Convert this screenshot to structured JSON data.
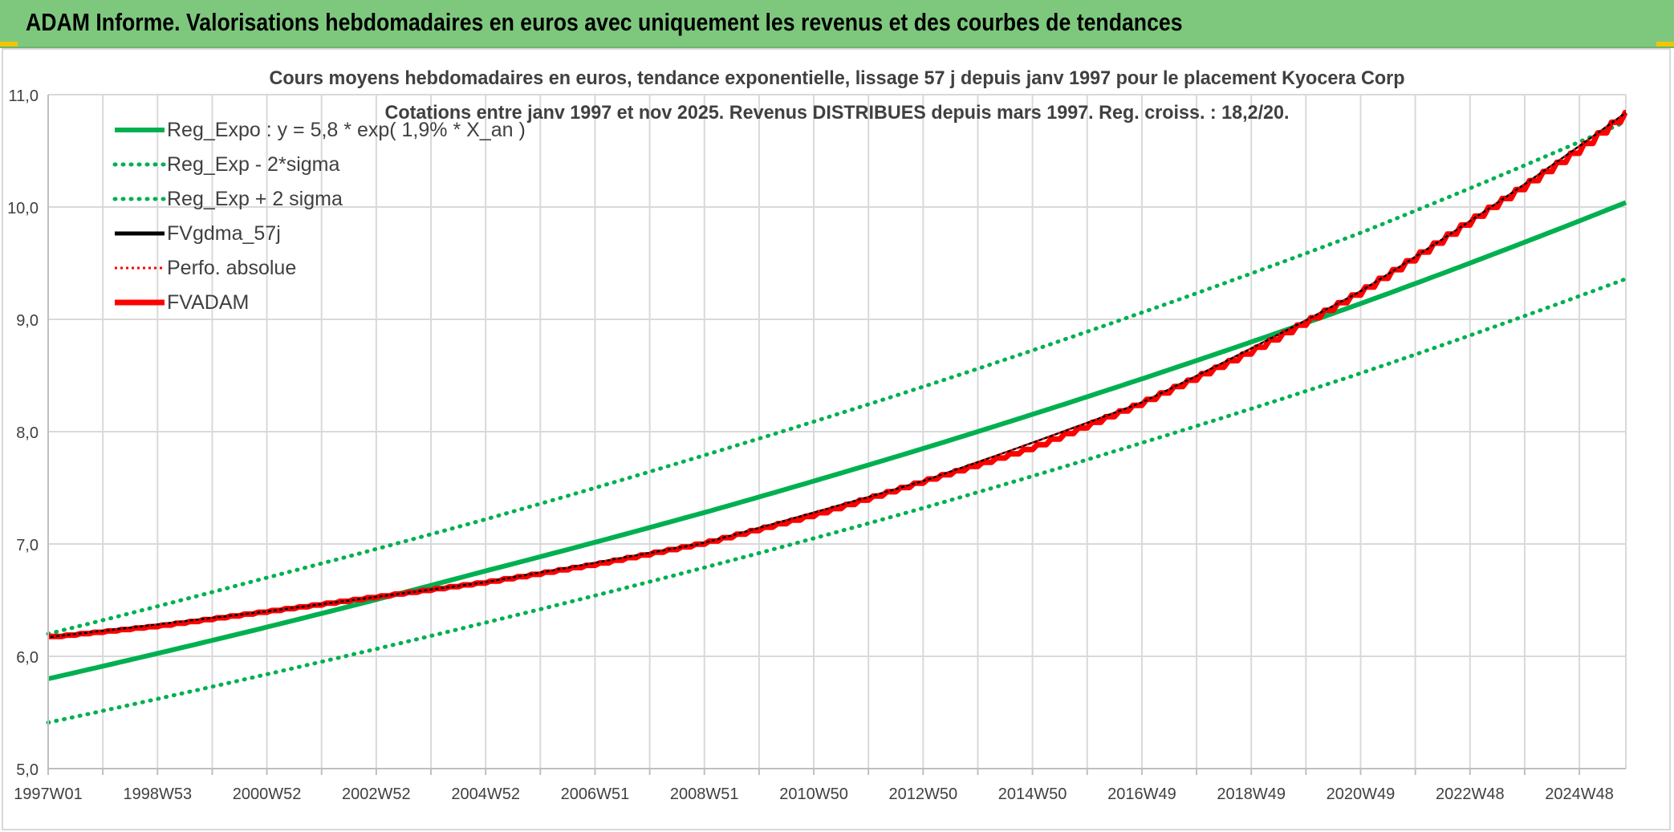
{
  "header": {
    "title": "ADAM Informe. Valorisations hebdomadaires en euros avec uniquement les revenus et des courbes de tendances"
  },
  "colors": {
    "header_bg": "#7ec87e",
    "reg_green": "#00b050",
    "fv_red": "#ff0000",
    "fvg_black": "#000000",
    "grid": "#d9d9d9"
  },
  "chart_data": {
    "type": "line",
    "title": "Cours moyens hebdomadaires en euros, tendance exponentielle, lissage 57 j depuis janv 1997 pour le placement Kyocera Corp",
    "subtitle": "Cotations entre janv 1997 et nov 2025. Revenus DISTRIBUES depuis mars 1997. Reg. croiss. : 18,2/20.",
    "xlabel": "",
    "ylabel": "",
    "ylim": [
      5.0,
      11.0
    ],
    "yticks": [
      "5,0",
      "6,0",
      "7,0",
      "8,0",
      "9,0",
      "10,0",
      "11,0"
    ],
    "xlim": [
      1997.0,
      2025.85
    ],
    "xtick_labels": [
      "1997W01",
      "1998W53",
      "2000W52",
      "2002W52",
      "2004W52",
      "2006W51",
      "2008W51",
      "2010W50",
      "2012W50",
      "2014W50",
      "2016W49",
      "2018W49",
      "2020W49",
      "2022W48",
      "2024W48"
    ],
    "xtick_years": [
      1997.0,
      1999.0,
      2001.0,
      2003.0,
      2005.0,
      2007.0,
      2009.0,
      2011.0,
      2013.0,
      2015.0,
      2017.0,
      2019.0,
      2021.0,
      2023.0,
      2025.0
    ],
    "grid": true,
    "legend_position": "top-left",
    "series": [
      {
        "name": "Reg_Expo : y = 5,8 * exp( 1,9% *  X_an )",
        "style": "solid-thick",
        "color": "#00b050",
        "x": [
          1997,
          2001,
          2005,
          2009,
          2013,
          2017,
          2021,
          2025.85
        ],
        "y": [
          5.8,
          6.26,
          6.76,
          7.28,
          7.85,
          8.47,
          9.14,
          10.04
        ]
      },
      {
        "name": "Reg_Exp - 2*sigma",
        "style": "dotted",
        "color": "#00b050",
        "x": [
          1997,
          2001,
          2005,
          2009,
          2013,
          2017,
          2021,
          2025.85
        ],
        "y": [
          5.41,
          5.84,
          6.3,
          6.79,
          7.32,
          7.9,
          8.52,
          9.36
        ]
      },
      {
        "name": "Reg_Exp + 2 sigma",
        "style": "dotted",
        "color": "#00b050",
        "x": [
          1997,
          2001,
          2005,
          2009,
          2013,
          2017,
          2021,
          2025.85
        ],
        "y": [
          6.2,
          6.7,
          7.22,
          7.79,
          8.4,
          9.06,
          9.77,
          10.76
        ]
      },
      {
        "name": "FVgdma_57j",
        "style": "solid",
        "color": "#000000",
        "x": [
          1997,
          2001,
          2005,
          2009,
          2013,
          2017,
          2021,
          2025.85
        ],
        "y": [
          6.17,
          6.4,
          6.66,
          7.01,
          7.56,
          8.26,
          9.25,
          10.84
        ]
      },
      {
        "name": "Perfo. absolue",
        "style": "dotted",
        "color": "#ff0000",
        "x": [
          1997,
          2001,
          2005,
          2009,
          2013,
          2017,
          2021,
          2025.85
        ],
        "y": [
          6.17,
          6.4,
          6.66,
          7.01,
          7.56,
          8.26,
          9.25,
          10.84
        ]
      },
      {
        "name": "FVADAM",
        "style": "step-thick",
        "color": "#ff0000",
        "steps_per_year": 4,
        "x": [
          1997,
          1999,
          2001,
          2003,
          2005,
          2007,
          2009,
          2011,
          2013,
          2015,
          2017,
          2019,
          2021,
          2023,
          2025,
          2025.85
        ],
        "y": [
          6.17,
          6.27,
          6.4,
          6.53,
          6.66,
          6.82,
          7.01,
          7.26,
          7.56,
          7.86,
          8.26,
          8.72,
          9.25,
          9.88,
          10.52,
          10.84
        ]
      }
    ]
  }
}
